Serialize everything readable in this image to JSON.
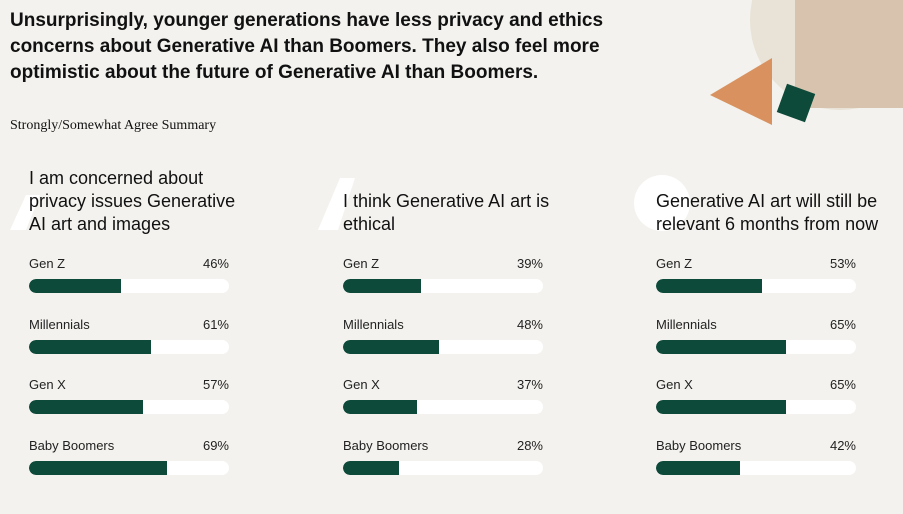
{
  "header": {
    "title": "Unsurprisingly, younger generations have less privacy and ethics concerns about Generative AI than Boomers. They also feel more optimistic about the future of Generative AI than Boomers.",
    "subtitle": "Strongly/Somewhat Agree Summary"
  },
  "chart_data": [
    {
      "type": "bar",
      "orientation": "horizontal",
      "title": "I am concerned about privacy issues Generative AI art and images",
      "categories": [
        "Gen Z",
        "Millennials",
        "Gen X",
        "Baby Boomers"
      ],
      "values": [
        46,
        61,
        57,
        69
      ],
      "value_labels": [
        "46%",
        "61%",
        "57%",
        "69%"
      ],
      "color": "#0d4a3a",
      "xlim": [
        0,
        100
      ]
    },
    {
      "type": "bar",
      "orientation": "horizontal",
      "title": "I think Generative AI art is ethical",
      "categories": [
        "Gen Z",
        "Millennials",
        "Gen X",
        "Baby Boomers"
      ],
      "values": [
        39,
        48,
        37,
        28
      ],
      "value_labels": [
        "39%",
        "48%",
        "37%",
        "28%"
      ],
      "color": "#0d4a3a",
      "xlim": [
        0,
        100
      ]
    },
    {
      "type": "bar",
      "orientation": "horizontal",
      "title": "Generative AI art will still be relevant 6 months from now",
      "categories": [
        "Gen Z",
        "Millennials",
        "Gen X",
        "Baby Boomers"
      ],
      "values": [
        53,
        65,
        65,
        42
      ],
      "value_labels": [
        "53%",
        "65%",
        "65%",
        "42%"
      ],
      "color": "#0d4a3a",
      "xlim": [
        0,
        100
      ]
    }
  ]
}
